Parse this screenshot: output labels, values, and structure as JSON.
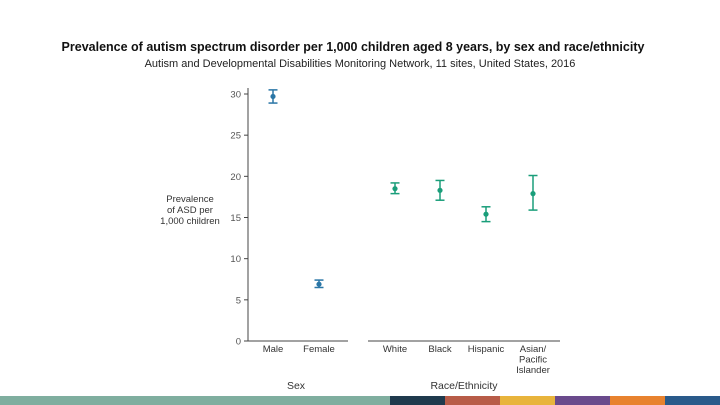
{
  "title": "Prevalence of autism spectrum disorder per 1,000 children aged 8 years, by sex and race/ethnicity",
  "subtitle": "Autism and Developmental Disabilities Monitoring Network, 11 sites, United States, 2016",
  "chart_data": {
    "type": "scatter",
    "subtype": "point-with-error-bars",
    "ylabel": [
      "Prevalence",
      "of ASD per",
      "1,000 children"
    ],
    "ylim": [
      0,
      30
    ],
    "yticks": [
      "0",
      "5",
      "10",
      "15",
      "20",
      "25",
      "30"
    ],
    "ytick_values": [
      0,
      5,
      10,
      15,
      20,
      25,
      30
    ],
    "grid": false,
    "groups": [
      {
        "label": "Sex",
        "color": "#2a76a6",
        "categories": [
          {
            "name": [
              "Male"
            ],
            "value": 29.7,
            "lower": 28.9,
            "upper": 30.5
          },
          {
            "name": [
              "Female"
            ],
            "value": 6.9,
            "lower": 6.5,
            "upper": 7.4
          }
        ]
      },
      {
        "label": "Race/Ethnicity",
        "color": "#1a9e7a",
        "categories": [
          {
            "name": [
              "White"
            ],
            "value": 18.5,
            "lower": 17.9,
            "upper": 19.2
          },
          {
            "name": [
              "Black"
            ],
            "value": 18.3,
            "lower": 17.1,
            "upper": 19.5
          },
          {
            "name": [
              "Hispanic"
            ],
            "value": 15.4,
            "lower": 14.5,
            "upper": 16.3
          },
          {
            "name": [
              "Asian/",
              "Pacific",
              "Islander"
            ],
            "value": 17.9,
            "lower": 15.9,
            "upper": 20.1
          }
        ]
      }
    ]
  },
  "footer_bar_colors": [
    "#7fae9f",
    "#1f3a4d",
    "#b85c48",
    "#e8b43c",
    "#6a4a8c",
    "#e8822e",
    "#2a5a8a"
  ]
}
